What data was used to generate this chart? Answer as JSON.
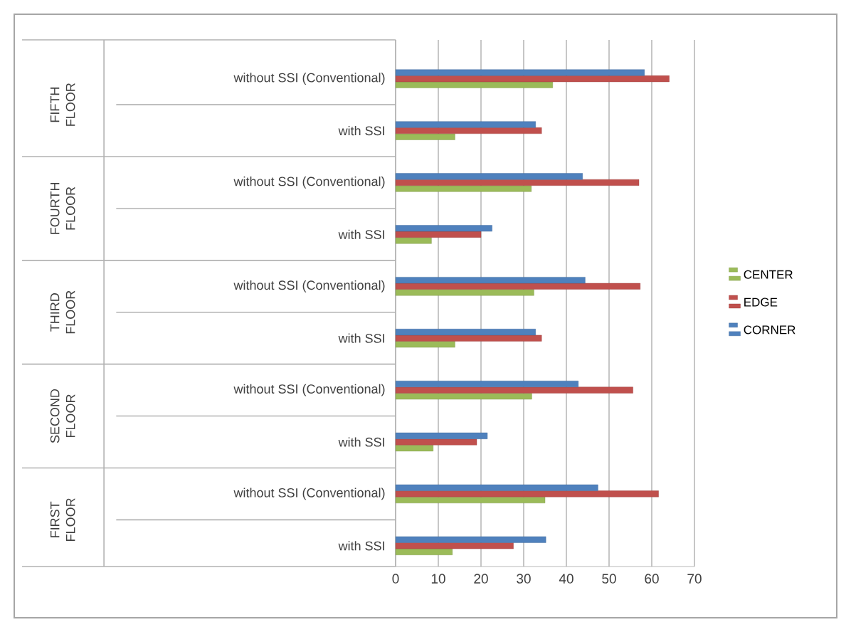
{
  "chart_data": {
    "type": "bar",
    "orientation": "horizontal",
    "categories": [
      "without SSI (Conventional)",
      "with SSI",
      "without SSI (Conventional)",
      "with SSI",
      "without SSI (Conventional)",
      "with SSI",
      "without SSI (Conventional)",
      "with SSI",
      "without SSI (Conventional)",
      "with SSI"
    ],
    "series": [
      {
        "name": "CENTER",
        "color": "#9bbb59",
        "values": [
          36.8,
          13.9,
          31.8,
          8.4,
          32.4,
          13.9,
          31.9,
          8.8,
          35.0,
          13.3
        ]
      },
      {
        "name": "EDGE",
        "color": "#c0504d",
        "values": [
          64.1,
          34.2,
          57.0,
          20.0,
          57.3,
          34.2,
          55.6,
          19.0,
          61.6,
          27.6
        ]
      },
      {
        "name": "CORNER",
        "color": "#4f81bd",
        "values": [
          58.3,
          32.8,
          43.8,
          22.6,
          44.4,
          32.8,
          42.8,
          21.5,
          47.4,
          35.2
        ]
      }
    ],
    "annotations": [
      "FIFTH FLOOR",
      "FOURTH FLOOR",
      "THIRD FLOOR",
      "SECOND FLOOR",
      "FIRST FLOOR"
    ],
    "xlim": [
      0,
      70
    ],
    "xticks": [
      0,
      10,
      20,
      30,
      40,
      50,
      60,
      70
    ],
    "grid": "x",
    "legend": "right"
  }
}
